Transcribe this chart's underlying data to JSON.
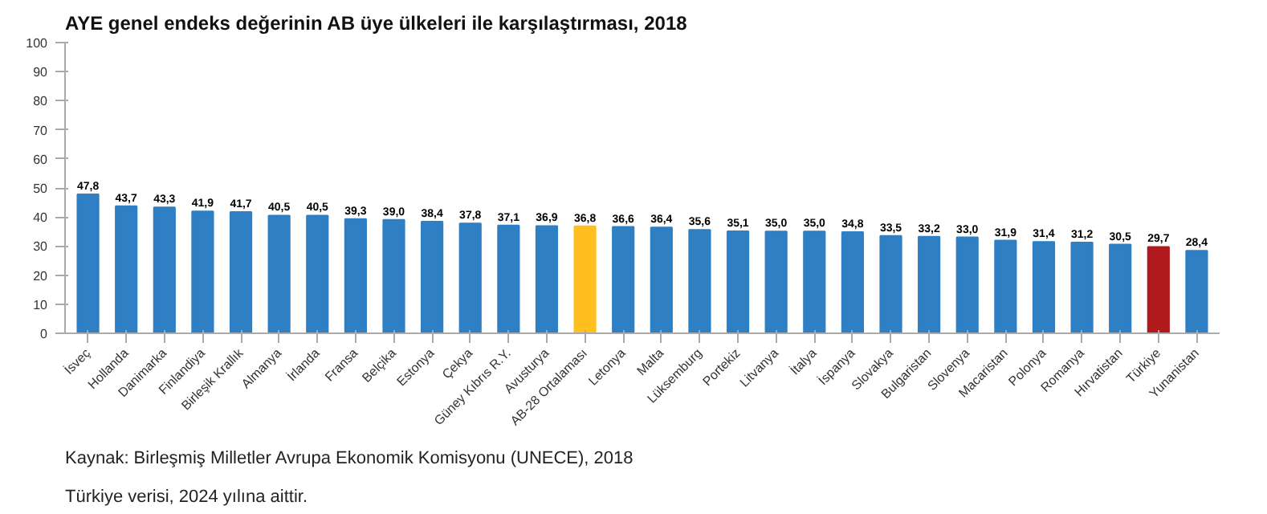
{
  "chart_data": {
    "type": "bar",
    "title": "AYE genel endeks değerinin AB üye ülkeleri ile karşılaştırması, 2018",
    "categories": [
      "İsveç",
      "Hollanda",
      "Danimarka",
      "Finlandiya",
      "Birleşik Krallık",
      "Almanya",
      "İrlanda",
      "Fransa",
      "Belçika",
      "Estonya",
      "Çekya",
      "Güney Kıbrıs R.Y.",
      "Avusturya",
      "AB-28 Ortalaması",
      "Letonya",
      "Malta",
      "Lüksemburg",
      "Portekiz",
      "Litvanya",
      "İtalya",
      "İspanya",
      "Slovakya",
      "Bulgaristan",
      "Slovenya",
      "Macaristan",
      "Polonya",
      "Romanya",
      "Hırvatistan",
      "Türkiye",
      "Yunanistan"
    ],
    "values": [
      47.8,
      43.7,
      43.3,
      41.9,
      41.7,
      40.5,
      40.5,
      39.3,
      39.0,
      38.4,
      37.8,
      37.1,
      36.9,
      36.8,
      36.6,
      36.4,
      35.6,
      35.1,
      35.0,
      35.0,
      34.8,
      33.5,
      33.2,
      33.0,
      31.9,
      31.4,
      31.2,
      30.5,
      29.7,
      28.4
    ],
    "value_labels": [
      "47,8",
      "43,7",
      "43,3",
      "41,9",
      "41,7",
      "40,5",
      "40,5",
      "39,3",
      "39,0",
      "38,4",
      "37,8",
      "37,1",
      "36,9",
      "36,8",
      "36,6",
      "36,4",
      "35,6",
      "35,1",
      "35,0",
      "35,0",
      "34,8",
      "33,5",
      "33,2",
      "33,0",
      "31,9",
      "31,4",
      "31,2",
      "30,5",
      "29,7",
      "28,4"
    ],
    "colors": [
      "#2e7fc4",
      "#2e7fc4",
      "#2e7fc4",
      "#2e7fc4",
      "#2e7fc4",
      "#2e7fc4",
      "#2e7fc4",
      "#2e7fc4",
      "#2e7fc4",
      "#2e7fc4",
      "#2e7fc4",
      "#2e7fc4",
      "#2e7fc4",
      "#ffbf1f",
      "#2e7fc4",
      "#2e7fc4",
      "#2e7fc4",
      "#2e7fc4",
      "#2e7fc4",
      "#2e7fc4",
      "#2e7fc4",
      "#2e7fc4",
      "#2e7fc4",
      "#2e7fc4",
      "#2e7fc4",
      "#2e7fc4",
      "#2e7fc4",
      "#2e7fc4",
      "#b01a1d",
      "#2e7fc4"
    ],
    "ylim": [
      0,
      100
    ],
    "yticks": [
      0,
      10,
      20,
      30,
      40,
      50,
      60,
      70,
      80,
      90,
      100
    ],
    "grid": false,
    "annotations": [
      "Kaynak: Birleşmiş Milletler Avrupa Ekonomik Komisyonu (UNECE), 2018",
      "Türkiye verisi, 2024 yılına aittir."
    ]
  }
}
